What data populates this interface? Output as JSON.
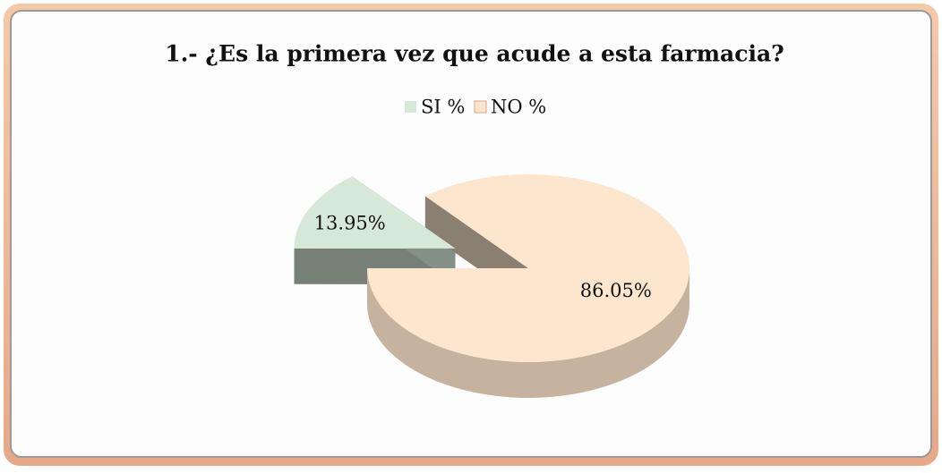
{
  "chart_data": {
    "type": "pie",
    "title": "1.- ¿Es la primera vez que acude a esta farmacia?",
    "categories": [
      "SI %",
      "NO %"
    ],
    "values": [
      13.95,
      86.05
    ],
    "value_labels": [
      "13.95%",
      "86.05%"
    ],
    "colors": [
      "#d6e9d8",
      "#fce6cd"
    ],
    "legend": "top",
    "explode": [
      true,
      false
    ]
  }
}
